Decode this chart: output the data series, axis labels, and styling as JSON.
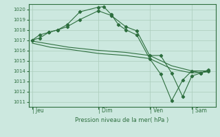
{
  "background_color": "#cce8df",
  "grid_color": "#aaccbb",
  "line_color": "#2d6e3e",
  "ylim": [
    1010.5,
    1020.5
  ],
  "yticks": [
    1011,
    1012,
    1013,
    1014,
    1015,
    1016,
    1017,
    1018,
    1019,
    1020
  ],
  "xlabel": "Pression niveau de la mer( hPa )",
  "xtick_labels": [
    "| Jeu",
    "| Dim",
    "| Ven",
    "| Sam"
  ],
  "xtick_positions": [
    0,
    36,
    64,
    87
  ],
  "line1_x": [
    0,
    4,
    9,
    14,
    19,
    26,
    36,
    39,
    43,
    47,
    51,
    57,
    64,
    70,
    76,
    82,
    87,
    92,
    96
  ],
  "line1_y": [
    1017.0,
    1017.5,
    1017.75,
    1018.0,
    1018.5,
    1019.75,
    1020.2,
    1020.25,
    1019.5,
    1018.5,
    1018.0,
    1017.5,
    1015.2,
    1013.7,
    1011.1,
    1013.1,
    1014.0,
    1013.8,
    1014.1
  ],
  "line2_x": [
    0,
    4,
    9,
    14,
    19,
    26,
    36,
    43,
    51,
    57,
    64,
    70,
    76,
    82,
    87,
    92,
    96
  ],
  "line2_y": [
    1017.0,
    1017.2,
    1017.75,
    1018.0,
    1018.3,
    1019.0,
    1019.85,
    1019.4,
    1018.3,
    1017.9,
    1015.5,
    1015.5,
    1013.8,
    1011.5,
    1013.5,
    1013.8,
    1014.0
  ],
  "line3_x": [
    0,
    10,
    20,
    36,
    51,
    64,
    76,
    87,
    96
  ],
  "line3_y": [
    1016.9,
    1016.6,
    1016.3,
    1016.0,
    1015.8,
    1015.5,
    1014.5,
    1014.0,
    1014.0
  ],
  "line4_x": [
    0,
    10,
    20,
    36,
    51,
    64,
    76,
    87,
    96
  ],
  "line4_y": [
    1016.7,
    1016.3,
    1016.1,
    1015.7,
    1015.5,
    1015.2,
    1014.2,
    1013.8,
    1013.9
  ],
  "xlim": [
    -2,
    100
  ]
}
